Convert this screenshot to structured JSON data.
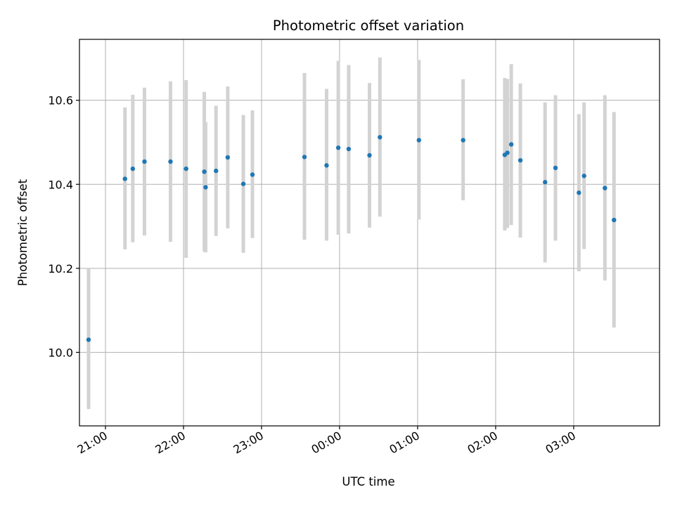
{
  "chart_data": {
    "type": "scatter",
    "title": "Photometric offset variation",
    "xlabel": "UTC time",
    "ylabel": "Photometric offset",
    "x_axis_kind": "time",
    "x_tick_labels": [
      "21:00",
      "22:00",
      "23:00",
      "00:00",
      "01:00",
      "02:00",
      "03:00"
    ],
    "x_ticks": [
      "21:00",
      "22:00",
      "23:00",
      "00:00",
      "01:00",
      "02:00",
      "03:00"
    ],
    "y_ticks": [
      10.0,
      10.2,
      10.4,
      10.6
    ],
    "y_tick_labels": [
      "10.0",
      "10.2",
      "10.4",
      "10.6"
    ],
    "xlim": [
      "20:40",
      "04:06"
    ],
    "ylim": [
      9.825,
      10.745
    ],
    "grid": true,
    "legend": "none",
    "colors": {
      "point": "#1f77b4",
      "errorbar": "#d3d3d3",
      "grid": "#b0b0b0"
    },
    "points": [
      {
        "x": "20:47",
        "y": 10.03,
        "ylow": 9.865,
        "yhigh": 10.2
      },
      {
        "x": "21:15",
        "y": 10.413,
        "ylow": 10.245,
        "yhigh": 10.583
      },
      {
        "x": "21:21",
        "y": 10.437,
        "ylow": 10.262,
        "yhigh": 10.613
      },
      {
        "x": "21:30",
        "y": 10.454,
        "ylow": 10.278,
        "yhigh": 10.63
      },
      {
        "x": "21:50",
        "y": 10.454,
        "ylow": 10.263,
        "yhigh": 10.645
      },
      {
        "x": "22:02",
        "y": 10.437,
        "ylow": 10.225,
        "yhigh": 10.648
      },
      {
        "x": "22:16",
        "y": 10.43,
        "ylow": 10.24,
        "yhigh": 10.62
      },
      {
        "x": "22:17",
        "y": 10.393,
        "ylow": 10.238,
        "yhigh": 10.548
      },
      {
        "x": "22:25",
        "y": 10.432,
        "ylow": 10.277,
        "yhigh": 10.587
      },
      {
        "x": "22:34",
        "y": 10.464,
        "ylow": 10.295,
        "yhigh": 10.633
      },
      {
        "x": "22:46",
        "y": 10.401,
        "ylow": 10.237,
        "yhigh": 10.565
      },
      {
        "x": "22:53",
        "y": 10.423,
        "ylow": 10.272,
        "yhigh": 10.576
      },
      {
        "x": "23:33",
        "y": 10.465,
        "ylow": 10.268,
        "yhigh": 10.665
      },
      {
        "x": "23:50",
        "y": 10.445,
        "ylow": 10.266,
        "yhigh": 10.627
      },
      {
        "x": "23:59",
        "y": 10.487,
        "ylow": 10.28,
        "yhigh": 10.694
      },
      {
        "x": "00:07",
        "y": 10.484,
        "ylow": 10.283,
        "yhigh": 10.684
      },
      {
        "x": "00:23",
        "y": 10.469,
        "ylow": 10.297,
        "yhigh": 10.641
      },
      {
        "x": "00:31",
        "y": 10.512,
        "ylow": 10.323,
        "yhigh": 10.702
      },
      {
        "x": "01:01",
        "y": 10.505,
        "ylow": 10.316,
        "yhigh": 10.696
      },
      {
        "x": "01:35",
        "y": 10.505,
        "ylow": 10.362,
        "yhigh": 10.65
      },
      {
        "x": "02:07",
        "y": 10.47,
        "ylow": 10.29,
        "yhigh": 10.653
      },
      {
        "x": "02:09",
        "y": 10.475,
        "ylow": 10.296,
        "yhigh": 10.651
      },
      {
        "x": "02:12",
        "y": 10.495,
        "ylow": 10.303,
        "yhigh": 10.686
      },
      {
        "x": "02:19",
        "y": 10.457,
        "ylow": 10.273,
        "yhigh": 10.64
      },
      {
        "x": "02:38",
        "y": 10.405,
        "ylow": 10.214,
        "yhigh": 10.595
      },
      {
        "x": "02:46",
        "y": 10.439,
        "ylow": 10.266,
        "yhigh": 10.612
      },
      {
        "x": "03:04",
        "y": 10.38,
        "ylow": 10.193,
        "yhigh": 10.567
      },
      {
        "x": "03:08",
        "y": 10.42,
        "ylow": 10.246,
        "yhigh": 10.595
      },
      {
        "x": "03:24",
        "y": 10.391,
        "ylow": 10.171,
        "yhigh": 10.612
      },
      {
        "x": "03:31",
        "y": 10.315,
        "ylow": 10.059,
        "yhigh": 10.572
      }
    ]
  }
}
